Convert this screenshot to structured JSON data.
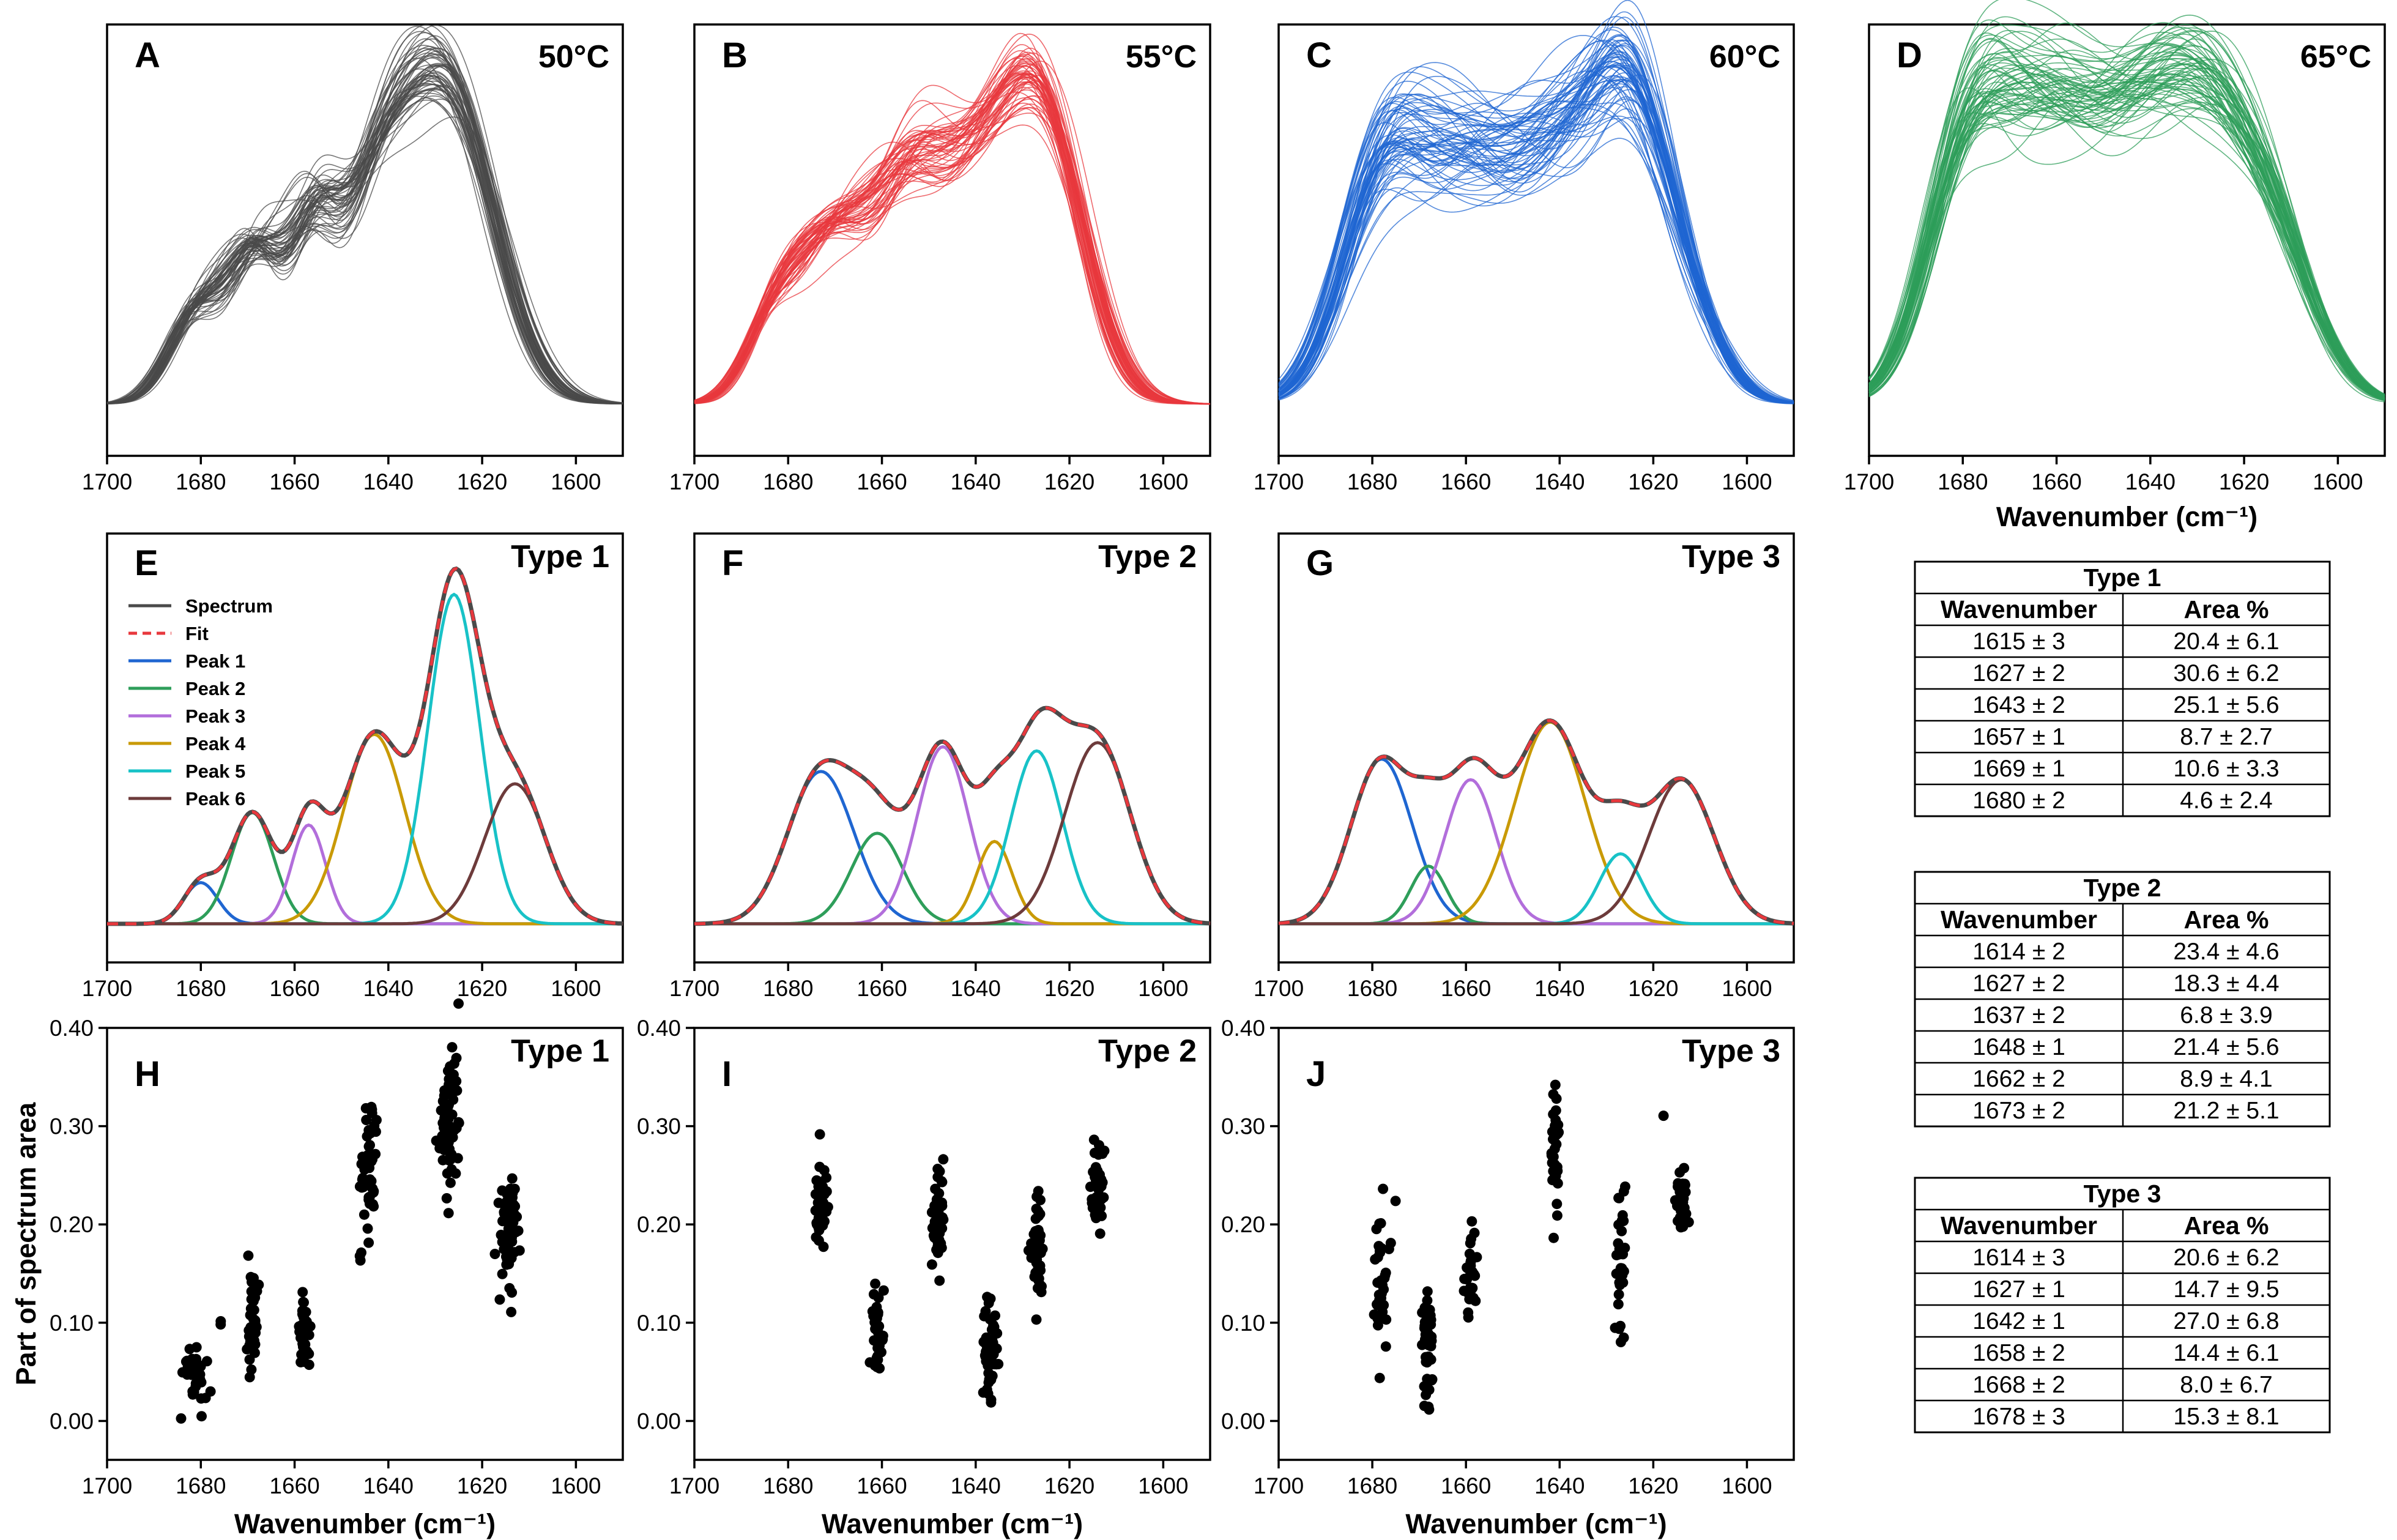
{
  "chart_data": {
    "type": "line",
    "xaxis": {
      "range": [
        1700,
        1590
      ],
      "ticks": [
        "1700",
        "1680",
        "1660",
        "1640",
        "1620",
        "1600"
      ],
      "reversed": true
    },
    "colors": {
      "gray": "#4a4a4a",
      "red": "#e8383d",
      "blue": "#1f66d1",
      "green": "#2e9e5a",
      "purple": "#b26edb",
      "gold": "#c99a06",
      "cyan": "#18c2c7",
      "brown": "#6d3b3b"
    },
    "spectra_row": [
      {
        "letter": "A",
        "temperature": "50°C",
        "color": "gray",
        "base_peaks": [
          [
            1627,
            0.7,
            10
          ],
          [
            1643,
            0.4,
            8
          ],
          [
            1656,
            0.3,
            5
          ],
          [
            1668,
            0.33,
            6
          ],
          [
            1681,
            0.2,
            6
          ]
        ],
        "samples": 60,
        "jitter": 0.06,
        "show_xlabel": false
      },
      {
        "letter": "B",
        "temperature": "55°C",
        "color": "red",
        "base_peaks": [
          [
            1626,
            0.72,
            9
          ],
          [
            1642,
            0.45,
            9
          ],
          [
            1655,
            0.38,
            7
          ],
          [
            1670,
            0.4,
            8
          ],
          [
            1683,
            0.18,
            6
          ]
        ],
        "samples": 60,
        "jitter": 0.06,
        "show_xlabel": false
      },
      {
        "letter": "C",
        "temperature": "60°C",
        "color": "blue",
        "base_peaks": [
          [
            1625,
            0.58,
            8
          ],
          [
            1640,
            0.55,
            10
          ],
          [
            1660,
            0.5,
            10
          ],
          [
            1678,
            0.55,
            9
          ],
          [
            1614,
            0.22,
            8
          ]
        ],
        "samples": 70,
        "jitter": 0.12,
        "show_xlabel": false
      },
      {
        "letter": "D",
        "temperature": "65°C",
        "color": "green",
        "base_peaks": [
          [
            1626,
            0.5,
            10
          ],
          [
            1643,
            0.55,
            11
          ],
          [
            1662,
            0.52,
            10
          ],
          [
            1679,
            0.55,
            9
          ],
          [
            1612,
            0.25,
            9
          ]
        ],
        "samples": 70,
        "jitter": 0.1,
        "show_xlabel": true
      }
    ],
    "fit_row": [
      {
        "letter": "E",
        "label": "Type 1",
        "show_legend": true,
        "peaks": [
          {
            "name": "Peak 1",
            "center": 1680,
            "amplitude": 0.1,
            "width": 3.6,
            "color": "blue"
          },
          {
            "name": "Peak 2",
            "center": 1669,
            "amplitude": 0.27,
            "width": 4.5,
            "color": "green"
          },
          {
            "name": "Peak 3",
            "center": 1657,
            "amplitude": 0.24,
            "width": 3.6,
            "color": "purple"
          },
          {
            "name": "Peak 4",
            "center": 1643,
            "amplitude": 0.46,
            "width": 6.5,
            "color": "gold"
          },
          {
            "name": "Peak 5",
            "center": 1626,
            "amplitude": 0.8,
            "width": 5.5,
            "color": "cyan"
          },
          {
            "name": "Peak 6",
            "center": 1613,
            "amplitude": 0.34,
            "width": 6.5,
            "color": "brown"
          }
        ]
      },
      {
        "letter": "F",
        "label": "Type 2",
        "show_legend": false,
        "peaks": [
          {
            "name": "Peak 1",
            "center": 1673,
            "amplitude": 0.37,
            "width": 7.0,
            "color": "blue"
          },
          {
            "name": "Peak 2",
            "center": 1661,
            "amplitude": 0.22,
            "width": 5.5,
            "color": "green"
          },
          {
            "name": "Peak 3",
            "center": 1647,
            "amplitude": 0.43,
            "width": 5.5,
            "color": "purple"
          },
          {
            "name": "Peak 4",
            "center": 1636,
            "amplitude": 0.2,
            "width": 3.8,
            "color": "gold"
          },
          {
            "name": "Peak 5",
            "center": 1627,
            "amplitude": 0.42,
            "width": 5.5,
            "color": "cyan"
          },
          {
            "name": "Peak 6",
            "center": 1614,
            "amplitude": 0.44,
            "width": 7.0,
            "color": "brown"
          }
        ]
      },
      {
        "letter": "G",
        "label": "Type 3",
        "show_legend": false,
        "peaks": [
          {
            "name": "Peak 1",
            "center": 1678,
            "amplitude": 0.4,
            "width": 6.5,
            "color": "blue"
          },
          {
            "name": "Peak 2",
            "center": 1668,
            "amplitude": 0.14,
            "width": 3.8,
            "color": "green"
          },
          {
            "name": "Peak 3",
            "center": 1659,
            "amplitude": 0.35,
            "width": 5.5,
            "color": "purple"
          },
          {
            "name": "Peak 4",
            "center": 1642,
            "amplitude": 0.49,
            "width": 7.5,
            "color": "gold"
          },
          {
            "name": "Peak 5",
            "center": 1627,
            "amplitude": 0.17,
            "width": 4.5,
            "color": "cyan"
          },
          {
            "name": "Peak 6",
            "center": 1614,
            "amplitude": 0.35,
            "width": 7.0,
            "color": "brown"
          }
        ]
      }
    ],
    "legend": {
      "items": [
        {
          "label": "Spectrum",
          "color": "gray",
          "dashed": false
        },
        {
          "label": "Fit",
          "color": "red",
          "dashed": true
        },
        {
          "label": "Peak 1",
          "color": "blue",
          "dashed": false
        },
        {
          "label": "Peak 2",
          "color": "green",
          "dashed": false
        },
        {
          "label": "Peak 3",
          "color": "purple",
          "dashed": false
        },
        {
          "label": "Peak 4",
          "color": "gold",
          "dashed": false
        },
        {
          "label": "Peak 5",
          "color": "cyan",
          "dashed": false
        },
        {
          "label": "Peak 6",
          "color": "brown",
          "dashed": false
        }
      ]
    },
    "scatter_row": {
      "ylabel": "Part of spectrum area",
      "xlabel": "Wavenumber (cm⁻¹)",
      "ylim": [
        0,
        0.4
      ],
      "yticks": [
        "0.00",
        "0.10",
        "0.20",
        "0.30",
        "0.40"
      ],
      "panels": [
        {
          "letter": "H",
          "label": "Type 1",
          "clusters": [
            [
              1681,
              0.05,
              2.0,
              0.015,
              32
            ],
            [
              1669,
              0.1,
              1.0,
              0.025,
              40
            ],
            [
              1658,
              0.09,
              1.0,
              0.02,
              35
            ],
            [
              1644,
              0.26,
              1.5,
              0.035,
              45
            ],
            [
              1627,
              0.3,
              1.8,
              0.035,
              70
            ],
            [
              1614,
              0.2,
              1.8,
              0.03,
              70
            ],
            [
              1684,
              0.005,
              0.3,
              0.002,
              1
            ],
            [
              1676,
              0.1,
              0.3,
              0.003,
              2
            ],
            [
              1646,
              0.165,
              0.6,
              0.003,
              3
            ]
          ]
        },
        {
          "letter": "I",
          "label": "Type 2",
          "clusters": [
            [
              1673,
              0.22,
              1.2,
              0.02,
              55
            ],
            [
              1661,
              0.08,
              1.2,
              0.025,
              35
            ],
            [
              1648,
              0.21,
              1.0,
              0.03,
              55
            ],
            [
              1637,
              0.07,
              1.5,
              0.025,
              50
            ],
            [
              1627,
              0.18,
              1.2,
              0.025,
              50
            ],
            [
              1614,
              0.24,
              1.3,
              0.025,
              45
            ]
          ]
        },
        {
          "letter": "J",
          "label": "Type 3",
          "clusters": [
            [
              1678,
              0.15,
              1.2,
              0.035,
              35
            ],
            [
              1668,
              0.08,
              1.0,
              0.035,
              40
            ],
            [
              1659,
              0.15,
              1.0,
              0.03,
              35
            ],
            [
              1641,
              0.28,
              0.8,
              0.03,
              35
            ],
            [
              1627,
              0.15,
              0.9,
              0.04,
              35
            ],
            [
              1614,
              0.22,
              1.0,
              0.02,
              40
            ],
            [
              1675,
              0.225,
              0.2,
              0.002,
              1
            ],
            [
              1618,
              0.31,
              0.2,
              0.002,
              1
            ]
          ]
        }
      ]
    },
    "tables": [
      {
        "title": "Type 1",
        "headers": [
          "Wavenumber",
          "Area %"
        ],
        "rows": [
          [
            "1615 ± 3",
            "20.4 ± 6.1"
          ],
          [
            "1627 ± 2",
            "30.6 ± 6.2"
          ],
          [
            "1643 ± 2",
            "25.1 ± 5.6"
          ],
          [
            "1657 ± 1",
            "8.7 ± 2.7"
          ],
          [
            "1669 ± 1",
            "10.6 ± 3.3"
          ],
          [
            "1680 ± 2",
            "4.6 ± 2.4"
          ]
        ]
      },
      {
        "title": "Type 2",
        "headers": [
          "Wavenumber",
          "Area %"
        ],
        "rows": [
          [
            "1614 ± 2",
            "23.4 ± 4.6"
          ],
          [
            "1627 ± 2",
            "18.3 ± 4.4"
          ],
          [
            "1637 ± 2",
            "6.8 ± 3.9"
          ],
          [
            "1648 ± 1",
            "21.4 ± 5.6"
          ],
          [
            "1662 ± 2",
            "8.9 ± 4.1"
          ],
          [
            "1673 ± 2",
            "21.2 ± 5.1"
          ]
        ]
      },
      {
        "title": "Type 3",
        "headers": [
          "Wavenumber",
          "Area %"
        ],
        "rows": [
          [
            "1614 ± 3",
            "20.6 ± 6.2"
          ],
          [
            "1627 ± 1",
            "14.7 ± 9.5"
          ],
          [
            "1642 ± 1",
            "27.0 ± 6.8"
          ],
          [
            "1658 ± 2",
            "14.4 ± 6.1"
          ],
          [
            "1668 ± 2",
            "8.0 ± 6.7"
          ],
          [
            "1678 ± 3",
            "15.3 ± 8.1"
          ]
        ]
      }
    ],
    "xlabel": "Wavenumber (cm⁻¹)"
  }
}
